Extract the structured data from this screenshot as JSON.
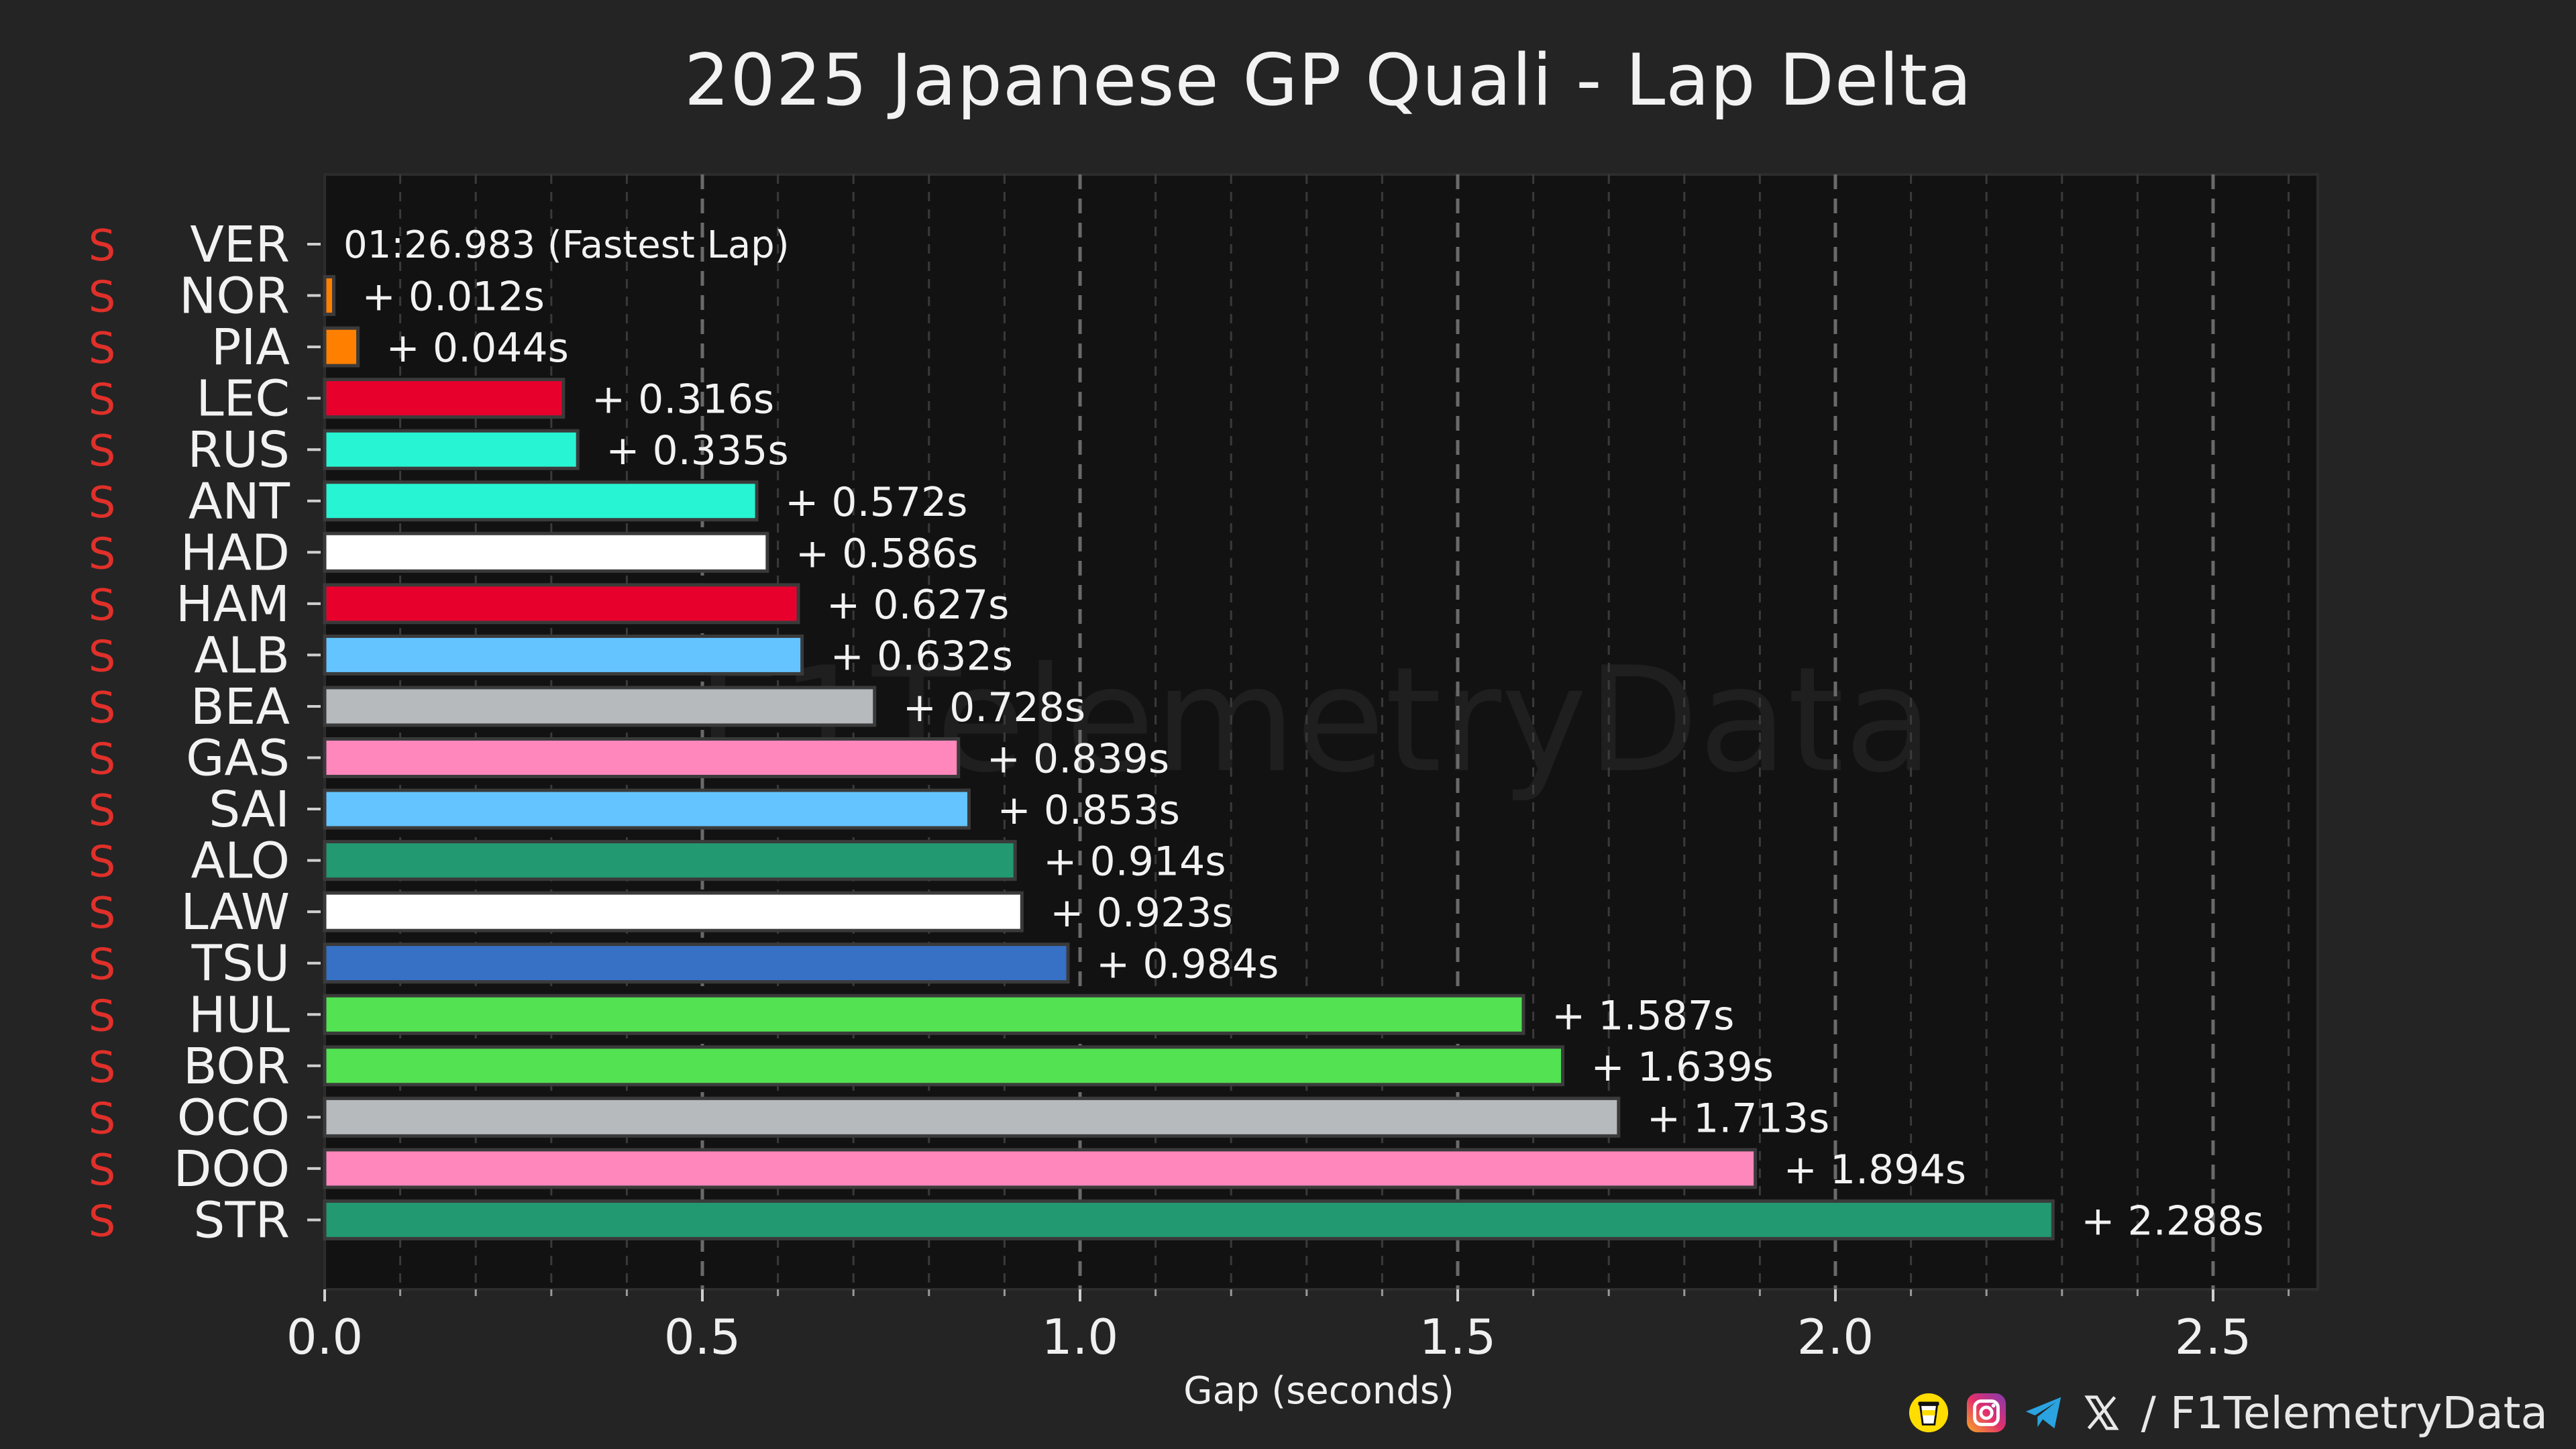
{
  "chart_data": {
    "type": "bar",
    "orientation": "horizontal",
    "title": "2025 Japanese GP Quali - Lap Delta",
    "xlabel": "Gap (seconds)",
    "ylabel": "",
    "xlim": [
      0,
      2.64
    ],
    "xticks": [
      "0.0",
      "0.5",
      "1.0",
      "1.5",
      "2.0",
      "2.5"
    ],
    "grid": true,
    "watermark": "F1TelemetryData",
    "tyre_label": "S",
    "tyre_color": "#e0302a",
    "fastest_label": "01:26.983 (Fastest Lap)",
    "bars": [
      {
        "driver": "VER",
        "gap": 0.0,
        "label": "",
        "color": "#3671c6"
      },
      {
        "driver": "NOR",
        "gap": 0.012,
        "label": "+ 0.012s",
        "color": "#ff8000"
      },
      {
        "driver": "PIA",
        "gap": 0.044,
        "label": "+ 0.044s",
        "color": "#ff8000"
      },
      {
        "driver": "LEC",
        "gap": 0.316,
        "label": "+ 0.316s",
        "color": "#e8002d"
      },
      {
        "driver": "RUS",
        "gap": 0.335,
        "label": "+ 0.335s",
        "color": "#27f4d2"
      },
      {
        "driver": "ANT",
        "gap": 0.572,
        "label": "+ 0.572s",
        "color": "#27f4d2"
      },
      {
        "driver": "HAD",
        "gap": 0.586,
        "label": "+ 0.586s",
        "color": "#ffffff"
      },
      {
        "driver": "HAM",
        "gap": 0.627,
        "label": "+ 0.627s",
        "color": "#e8002d"
      },
      {
        "driver": "ALB",
        "gap": 0.632,
        "label": "+ 0.632s",
        "color": "#64c4ff"
      },
      {
        "driver": "BEA",
        "gap": 0.728,
        "label": "+ 0.728s",
        "color": "#b6babd"
      },
      {
        "driver": "GAS",
        "gap": 0.839,
        "label": "+ 0.839s",
        "color": "#ff87bc"
      },
      {
        "driver": "SAI",
        "gap": 0.853,
        "label": "+ 0.853s",
        "color": "#64c4ff"
      },
      {
        "driver": "ALO",
        "gap": 0.914,
        "label": "+ 0.914s",
        "color": "#229971"
      },
      {
        "driver": "LAW",
        "gap": 0.923,
        "label": "+ 0.923s",
        "color": "#ffffff"
      },
      {
        "driver": "TSU",
        "gap": 0.984,
        "label": "+ 0.984s",
        "color": "#3671c6"
      },
      {
        "driver": "HUL",
        "gap": 1.587,
        "label": "+ 1.587s",
        "color": "#52e252"
      },
      {
        "driver": "BOR",
        "gap": 1.639,
        "label": "+ 1.639s",
        "color": "#52e252"
      },
      {
        "driver": "OCO",
        "gap": 1.713,
        "label": "+ 1.713s",
        "color": "#b6babd"
      },
      {
        "driver": "DOO",
        "gap": 1.894,
        "label": "+ 1.894s",
        "color": "#ff87bc"
      },
      {
        "driver": "STR",
        "gap": 2.288,
        "label": "+ 2.288s",
        "color": "#229971"
      }
    ]
  },
  "footer": {
    "handle": "/ F1TelemetryData",
    "icons": [
      "coffee-icon",
      "instagram-icon",
      "telegram-icon",
      "x-icon"
    ]
  }
}
